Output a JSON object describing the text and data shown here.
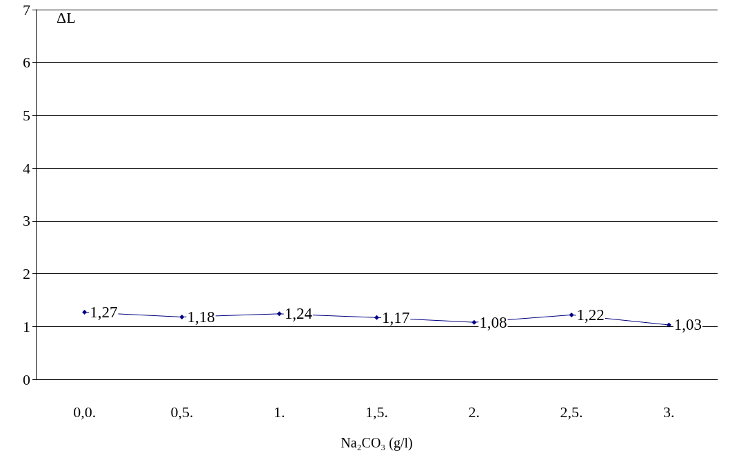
{
  "chart_data": {
    "type": "line",
    "categories": [
      "0,0.",
      "0,5.",
      "1.",
      "1,5.",
      "2.",
      "2,5.",
      "3."
    ],
    "series": [
      {
        "color": "#000080",
        "values": [
          1.27,
          1.18,
          1.24,
          1.17,
          1.08,
          1.22,
          1.03
        ],
        "value_labels": [
          "1,27",
          "1,18",
          "1,24",
          "1,17",
          "1,08",
          "1,22",
          "1,03"
        ]
      }
    ],
    "ylabel": "ΔL",
    "xlabel": "Na₂CO₃ (g/l)",
    "ylim": [
      0,
      7
    ],
    "yticks": [
      0,
      1,
      2,
      3,
      4,
      5,
      6,
      7
    ],
    "grid": "y",
    "marker": "diamond",
    "line_style": "solid"
  }
}
